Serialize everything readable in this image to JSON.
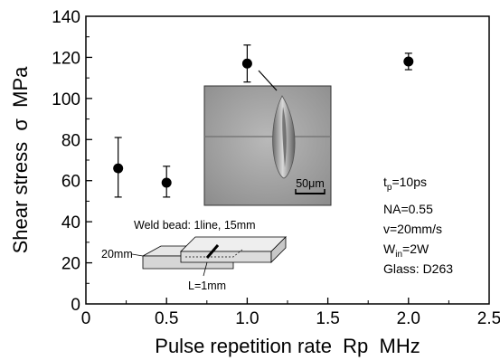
{
  "chart_data": {
    "type": "scatter",
    "title": "",
    "xlabel": "Pulse repetition rate  Rp  MHz",
    "ylabel": "Shear stress  σ  MPa",
    "xlim": [
      0,
      2.5
    ],
    "ylim": [
      0,
      140
    ],
    "x_ticks": [
      "0",
      "0.5",
      "1.0",
      "1.5",
      "2.0",
      "2.5"
    ],
    "y_ticks": [
      "0",
      "20",
      "40",
      "60",
      "80",
      "100",
      "120",
      "140"
    ],
    "grid": false,
    "series": [
      {
        "points": [
          {
            "x": 0.2,
            "y": 66,
            "err_low": 52,
            "err_high": 81
          },
          {
            "x": 0.5,
            "y": 59,
            "err_low": 52,
            "err_high": 67
          },
          {
            "x": 1.0,
            "y": 117,
            "err_low": 108,
            "err_high": 126
          },
          {
            "x": 2.0,
            "y": 118,
            "err_low": 114,
            "err_high": 122
          }
        ]
      }
    ],
    "conditions": {
      "tp": {
        "main": "t",
        "sub": "p",
        "rest": "=10ps"
      },
      "na": "NA=0.55",
      "v": "v=20mm/s",
      "win": {
        "main": "W",
        "sub": "in",
        "rest": "=2W"
      },
      "glass": "Glass: D263"
    },
    "inset": {
      "scale_label": "50μm",
      "weld_label": "Weld bead: 1line, 15mm",
      "width_label": "20mm",
      "length_label": "L=1mm"
    },
    "colors": {
      "marker": "#000000",
      "axis": "#000000"
    }
  }
}
